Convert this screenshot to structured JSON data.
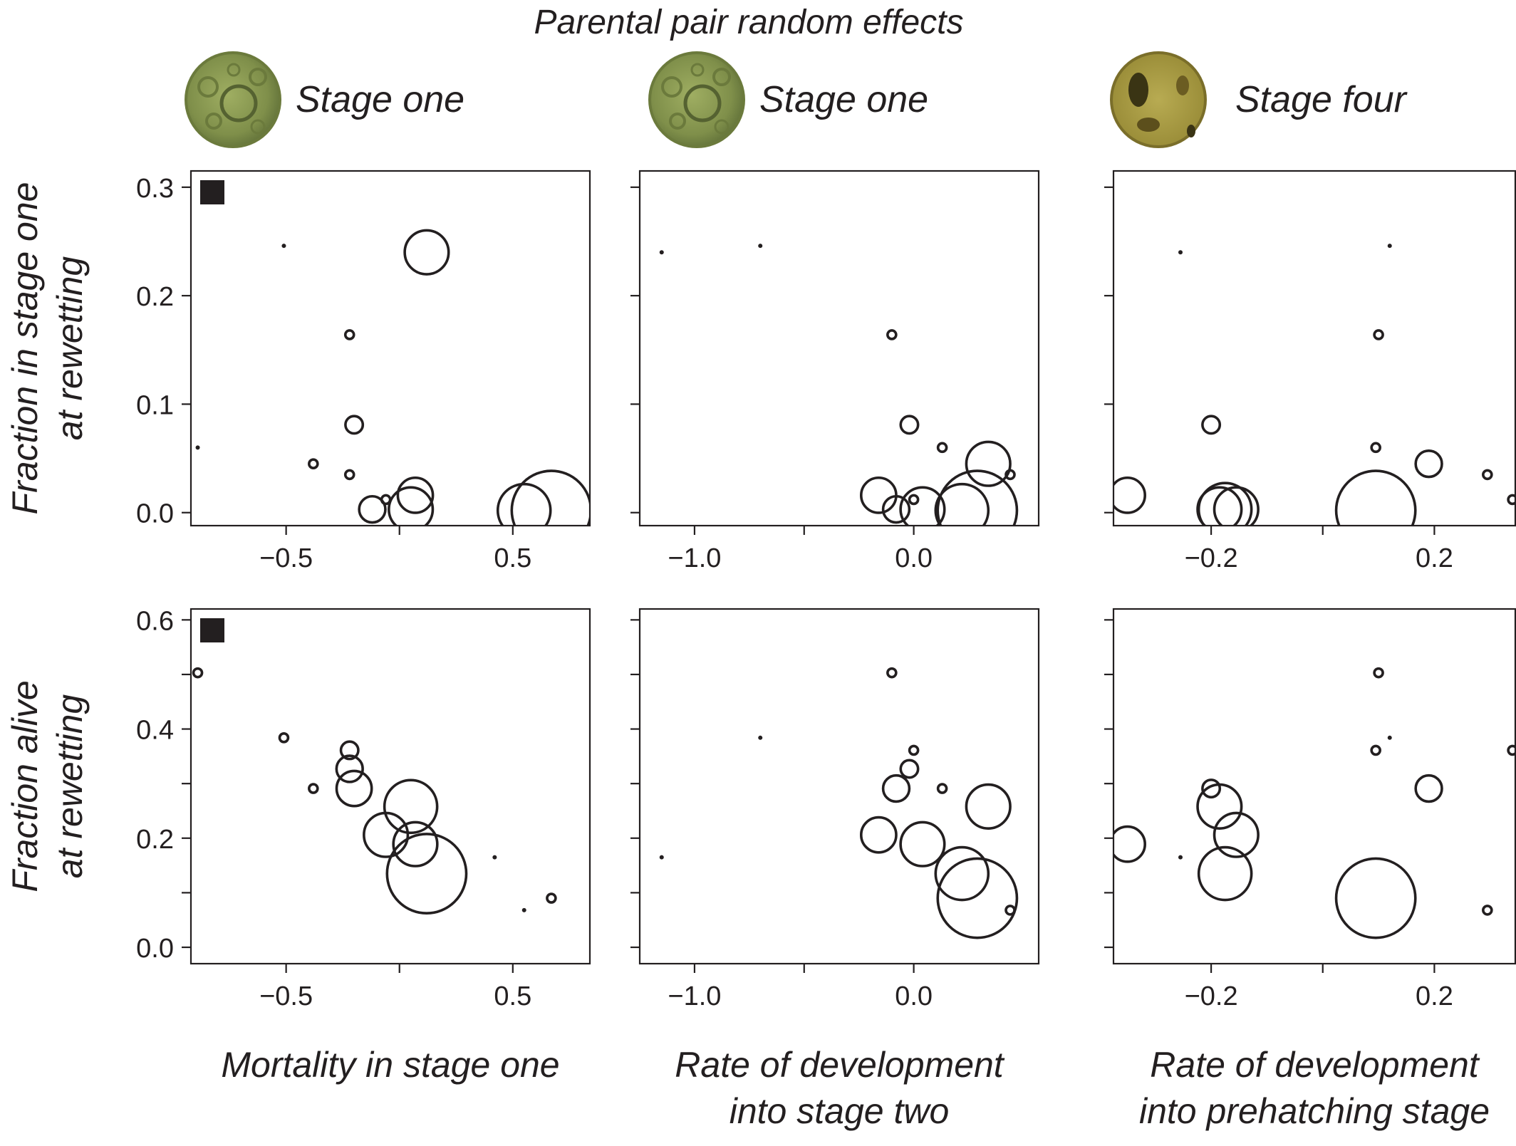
{
  "super_title": "Parental pair random effects",
  "columns": [
    {
      "stage_label": "Stage one",
      "image": "stage-one-egg"
    },
    {
      "stage_label": "Stage one",
      "image": "stage-one-egg"
    },
    {
      "stage_label": "Stage four",
      "image": "stage-four-egg"
    }
  ],
  "row_ylabels": [
    [
      "Fraction in stage one",
      "at rewetting"
    ],
    [
      "Fraction alive",
      "at rewetting"
    ]
  ],
  "col_xlabels": [
    [
      "Mortality in stage one"
    ],
    [
      "Rate of development",
      "into stage two"
    ],
    [
      "Rate of development",
      "into prehatching stage"
    ]
  ],
  "x_axes": [
    {
      "ticks": [
        -0.5,
        0.5
      ],
      "minor": [
        0
      ],
      "tick_labels": [
        "−0.5",
        "0.5"
      ],
      "xlim": [
        -0.92,
        0.84
      ]
    },
    {
      "ticks": [
        -1.0,
        0.0
      ],
      "minor": [
        -0.5
      ],
      "tick_labels": [
        "−1.0",
        "0.0"
      ],
      "xlim": [
        -1.25,
        0.57
      ]
    },
    {
      "ticks": [
        -0.2,
        0.2
      ],
      "minor": [
        0.0
      ],
      "tick_labels": [
        "−0.2",
        "0.2"
      ],
      "xlim": [
        -0.375,
        0.345
      ]
    }
  ],
  "y_axes": [
    {
      "ticks": [
        0.0,
        0.1,
        0.2,
        0.3
      ],
      "tick_labels": [
        "0.0",
        "0.1",
        "0.2",
        "0.3"
      ],
      "ylim": [
        -0.012,
        0.315
      ]
    },
    {
      "ticks": [
        0.0,
        0.1,
        0.2,
        0.3,
        0.4,
        0.5,
        0.6
      ],
      "labeled": [
        0.0,
        0.2,
        0.4,
        0.6
      ],
      "tick_labels": [
        "0.0",
        "0.2",
        "0.4",
        "0.6"
      ],
      "ylim": [
        -0.03,
        0.62
      ]
    }
  ],
  "bubble_sizes": [
    1,
    1,
    2,
    2,
    2,
    2,
    3,
    4,
    5,
    6,
    6,
    7,
    10
  ],
  "chart_data": [
    {
      "type": "scatter",
      "row": 0,
      "col": 0,
      "marker": "square-top-left",
      "x": [
        -0.89,
        -0.51,
        -0.38,
        -0.22,
        -0.06,
        -0.22,
        -0.2,
        -0.12,
        0.07,
        0.05,
        0.12,
        0.55,
        0.67
      ],
      "y": [
        0.06,
        0.246,
        0.045,
        0.035,
        0.012,
        0.164,
        0.081,
        0.003,
        0.016,
        0.003,
        0.24,
        0.002,
        0.002
      ]
    },
    {
      "type": "scatter",
      "row": 0,
      "col": 1,
      "x": [
        -1.15,
        -0.7,
        0.13,
        0.44,
        -0.1,
        0.0,
        -0.02,
        -0.08,
        -0.16,
        0.04,
        0.34,
        0.22,
        0.29
      ],
      "y": [
        0.24,
        0.246,
        0.06,
        0.035,
        0.164,
        0.012,
        0.081,
        0.003,
        0.016,
        0.003,
        0.045,
        0.002,
        0.002
      ]
    },
    {
      "type": "scatter",
      "row": 0,
      "col": 2,
      "x": [
        -0.255,
        0.12,
        0.095,
        0.295,
        0.1,
        0.34,
        -0.2,
        0.19,
        -0.35,
        -0.155,
        -0.185,
        -0.175,
        0.095
      ],
      "y": [
        0.24,
        0.246,
        0.06,
        0.035,
        0.164,
        0.012,
        0.081,
        0.045,
        0.016,
        0.003,
        0.003,
        0.003,
        0.002
      ]
    },
    {
      "type": "scatter",
      "row": 1,
      "col": 0,
      "marker": "square-top-left",
      "x": [
        0.42,
        0.55,
        0.67,
        -0.51,
        -0.38,
        -0.89,
        -0.22,
        -0.22,
        -0.2,
        -0.06,
        0.07,
        0.05,
        0.12
      ],
      "y": [
        0.165,
        0.068,
        0.09,
        0.384,
        0.291,
        0.503,
        0.361,
        0.327,
        0.291,
        0.206,
        0.189,
        0.258,
        0.135
      ]
    },
    {
      "type": "scatter",
      "row": 1,
      "col": 1,
      "x": [
        -1.15,
        -0.7,
        0.13,
        0.44,
        -0.1,
        0.0,
        -0.02,
        -0.08,
        -0.16,
        0.04,
        0.34,
        0.22,
        0.29
      ],
      "y": [
        0.165,
        0.384,
        0.291,
        0.068,
        0.503,
        0.361,
        0.327,
        0.291,
        0.206,
        0.189,
        0.258,
        0.135,
        0.09
      ]
    },
    {
      "type": "scatter",
      "row": 1,
      "col": 2,
      "x": [
        -0.255,
        0.12,
        0.095,
        0.295,
        0.1,
        0.34,
        -0.2,
        0.19,
        -0.35,
        -0.155,
        -0.185,
        -0.175,
        0.095
      ],
      "y": [
        0.165,
        0.384,
        0.361,
        0.068,
        0.503,
        0.361,
        0.291,
        0.291,
        0.189,
        0.206,
        0.258,
        0.135,
        0.09
      ]
    }
  ]
}
